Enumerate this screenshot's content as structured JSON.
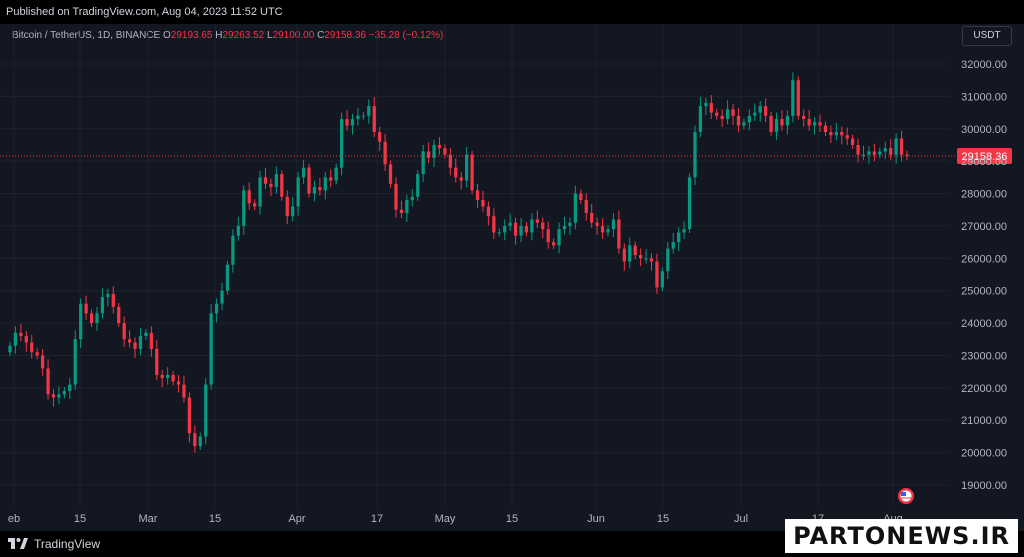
{
  "header": {
    "published": "Published on TradingView.com, Aug 04, 2023 11:52 UTC"
  },
  "legend": {
    "symbol": "Bitcoin / TetherUS, 1D, BINANCE",
    "o_label": "O",
    "o_value": "29193.65",
    "h_label": "H",
    "h_value": "29263.52",
    "l_label": "L",
    "l_value": "29100.00",
    "c_label": "C",
    "c_value": "29158.36",
    "change": "−35.28 (−0.12%)"
  },
  "currency_button": "USDT",
  "footer": {
    "brand": "TradingView"
  },
  "watermark": "PARTONEWS.IR",
  "colors": {
    "background": "#131722",
    "up": "#089981",
    "down": "#f23645",
    "grid": "#1e222d",
    "axis_text": "#b2b5be"
  },
  "chart_data": {
    "type": "candlestick",
    "title": "Bitcoin / TetherUS, 1D, BINANCE",
    "x_tick_labels": [
      "eb",
      "15",
      "Mar",
      "15",
      "Apr",
      "17",
      "May",
      "15",
      "Jun",
      "15",
      "Jul",
      "17",
      "Aug"
    ],
    "y_tick_labels": [
      "32000.00",
      "31000.00",
      "30000.00",
      "29000.00",
      "28000.00",
      "27000.00",
      "26000.00",
      "25000.00",
      "24000.00",
      "23000.00",
      "22000.00",
      "21000.00",
      "20000.00",
      "19000.00"
    ],
    "ylim": [
      18700,
      32900
    ],
    "grid": true,
    "last_price": "29158.36",
    "candles_daily_close": [
      23300,
      23700,
      23600,
      23400,
      23100,
      23000,
      22600,
      21800,
      21700,
      21800,
      21900,
      22100,
      23500,
      24600,
      24300,
      24000,
      24300,
      24800,
      24900,
      24500,
      24000,
      23500,
      23400,
      23200,
      23600,
      23700,
      23200,
      22400,
      22300,
      22400,
      22200,
      22100,
      21700,
      20600,
      20200,
      20500,
      22100,
      24300,
      24600,
      25000,
      25800,
      26700,
      27000,
      28100,
      27700,
      27600,
      28500,
      28300,
      28200,
      28600,
      27900,
      27300,
      27600,
      28500,
      28800,
      28000,
      28200,
      28100,
      28500,
      28400,
      28800,
      30300,
      30100,
      30300,
      30400,
      30400,
      30700,
      29900,
      29600,
      28900,
      28300,
      27500,
      27400,
      27800,
      27900,
      28600,
      29300,
      29100,
      29500,
      29400,
      29200,
      28800,
      28500,
      28400,
      29200,
      28100,
      27800,
      27600,
      27300,
      26800,
      26800,
      27000,
      27100,
      26700,
      27000,
      26800,
      27200,
      27100,
      26900,
      26500,
      26400,
      26900,
      27000,
      27100,
      28000,
      27800,
      27400,
      27100,
      27000,
      26800,
      26900,
      27200,
      26300,
      25900,
      26400,
      26100,
      26000,
      26000,
      25900,
      25100,
      25600,
      26300,
      26500,
      26800,
      26900,
      28500,
      29900,
      30700,
      30800,
      30500,
      30400,
      30300,
      30600,
      30400,
      30100,
      30200,
      30400,
      30500,
      30700,
      30400,
      29900,
      30300,
      30100,
      30400,
      31500,
      30400,
      30300,
      30100,
      30200,
      30100,
      29900,
      29800,
      29900,
      29800,
      29700,
      29500,
      29200,
      29200,
      29300,
      29200,
      29300,
      29400,
      29200,
      29700,
      29200,
      29158
    ]
  }
}
